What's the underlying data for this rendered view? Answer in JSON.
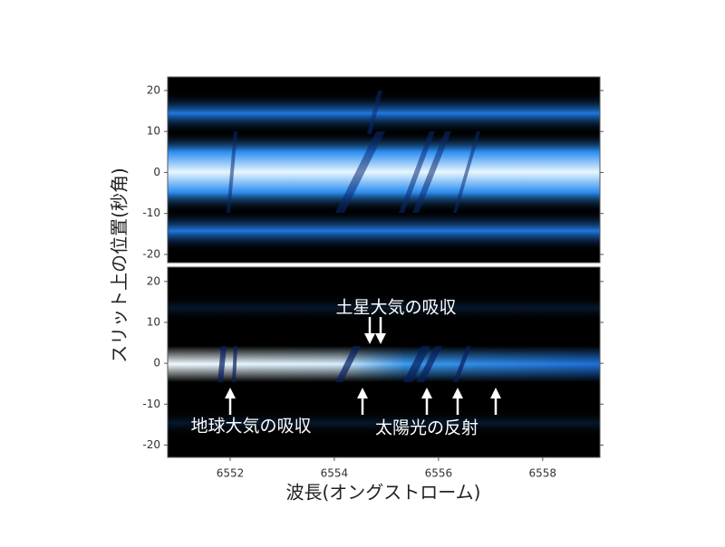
{
  "chart_data": [
    {
      "type": "image",
      "xlim": [
        6550.8,
        6559.1
      ],
      "ylim": [
        -22,
        23.3
      ],
      "yticks": [
        -20,
        -10,
        0,
        10,
        20
      ],
      "y_label": "スリット上の位置(秒角)"
    },
    {
      "type": "image",
      "xlim": [
        6550.8,
        6559.1
      ],
      "ylim": [
        -23,
        23.5
      ],
      "yticks": [
        -20,
        -10,
        0,
        10,
        20
      ],
      "xticks": [
        6552,
        6554,
        6556,
        6558
      ],
      "x_label": "波長(オングストローム)",
      "annotations": [
        "土星大気の吸収",
        "地球大気の吸収",
        "太陽光の反射"
      ]
    }
  ]
}
